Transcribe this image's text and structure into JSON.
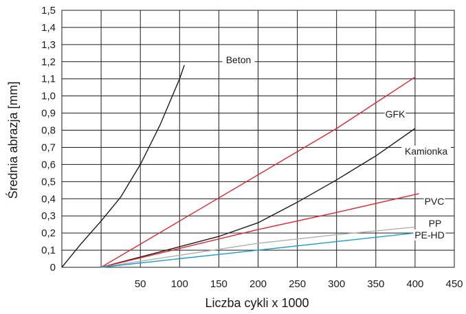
{
  "chart_data": {
    "type": "line",
    "xlabel": "Liczba cykli x 1000",
    "ylabel": "Średnia abrazja [mm]",
    "xlim": [
      -50,
      450
    ],
    "ylim": [
      0,
      1.5
    ],
    "x_ticks": [
      "50",
      "100",
      "150",
      "200",
      "250",
      "300",
      "350",
      "400",
      "450"
    ],
    "y_ticks": [
      "0",
      "0,1",
      "0,2",
      "0,3",
      "0,4",
      "0,5",
      "0,6",
      "0,7",
      "0,8",
      "0,9",
      "1,0",
      "1,1",
      "1,2",
      "1,3",
      "1,4",
      "1,5"
    ],
    "grid": true,
    "series": [
      {
        "name": "Beton",
        "color": "#1a1a1a",
        "x": [
          -50,
          -25,
          0,
          25,
          50,
          75,
          100,
          106
        ],
        "y": [
          0,
          0.14,
          0.27,
          0.41,
          0.6,
          0.83,
          1.1,
          1.18
        ]
      },
      {
        "name": "GFK",
        "color": "#e0262c",
        "x": [
          0,
          100,
          200,
          300,
          400
        ],
        "y": [
          0,
          0.27,
          0.54,
          0.81,
          1.11
        ]
      },
      {
        "name": "Kamionka",
        "color": "#1a1a1a",
        "x": [
          0,
          50,
          100,
          150,
          200,
          250,
          300,
          350,
          400
        ],
        "y": [
          0,
          0.06,
          0.12,
          0.18,
          0.26,
          0.38,
          0.51,
          0.65,
          0.81
        ]
      },
      {
        "name": "PVC",
        "color": "#e0262c",
        "x": [
          0,
          100,
          200,
          300,
          405
        ],
        "y": [
          0,
          0.11,
          0.22,
          0.32,
          0.43
        ]
      },
      {
        "name": "PP",
        "color": "#b0b0b0",
        "x": [
          0,
          100,
          200,
          300,
          400
        ],
        "y": [
          0,
          0.07,
          0.14,
          0.19,
          0.235
        ]
      },
      {
        "name": "PE-HD",
        "color": "#1a9bd7",
        "x": [
          0,
          100,
          200,
          300,
          400
        ],
        "y": [
          0,
          0.05,
          0.1,
          0.15,
          0.2
        ]
      }
    ]
  }
}
